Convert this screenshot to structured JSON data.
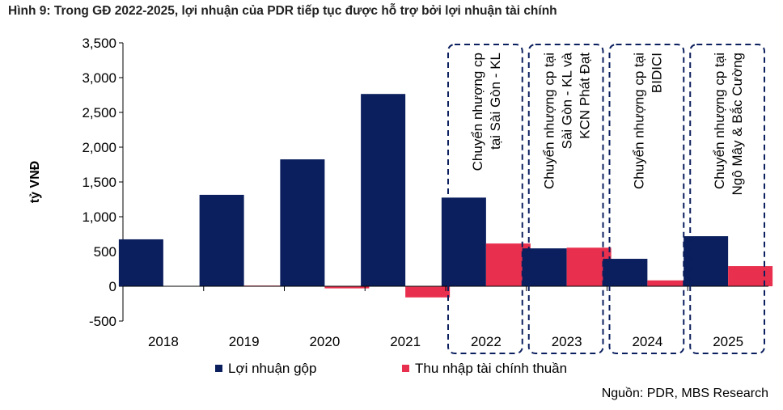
{
  "title": "Hình 9: Trong GĐ 2022-2025, lợi nhuận của PDR tiếp tục được hỗ trợ bởi lợi nhuận tài chính",
  "source": "Nguồn: PDR, MBS Research",
  "colors": {
    "gross": "#0b1f5e",
    "financial": "#e8304e"
  },
  "chart_data": {
    "type": "bar",
    "ylabel": "tỷ VNĐ",
    "ylim": [
      -500,
      3500
    ],
    "yticks": [
      -500,
      0,
      500,
      1000,
      1500,
      2000,
      2500,
      3000,
      3500
    ],
    "ytick_labels": [
      "-500",
      "0",
      "500",
      "1,000",
      "1,500",
      "2,000",
      "2,500",
      "3,000",
      "3,500"
    ],
    "categories": [
      "2018",
      "2019",
      "2020",
      "2021",
      "2022",
      "2023",
      "2024",
      "2025"
    ],
    "series": [
      {
        "name": "Lợi nhuận gộp",
        "values": [
          675,
          1315,
          1825,
          2765,
          1275,
          545,
          395,
          720
        ]
      },
      {
        "name": "Thu nhập tài chính thuần",
        "values": [
          0,
          10,
          -30,
          -160,
          615,
          555,
          85,
          290
        ]
      }
    ],
    "legend_position": "bottom",
    "annotations": [
      {
        "category": "2022",
        "lines": [
          "Chuyển nhượng cp",
          "tại Sài Gòn - KL"
        ]
      },
      {
        "category": "2023",
        "lines": [
          "Chuyển nhượng cp tại",
          "Sài Gòn - KL và",
          "KCN Phát  Đạt"
        ]
      },
      {
        "category": "2024",
        "lines": [
          "Chuyển nhượng cp tại",
          "BIDICI"
        ]
      },
      {
        "category": "2025",
        "lines": [
          "Chuyển nhượng cp tại",
          "Ngô Mây & Bắc Cường"
        ]
      }
    ]
  }
}
